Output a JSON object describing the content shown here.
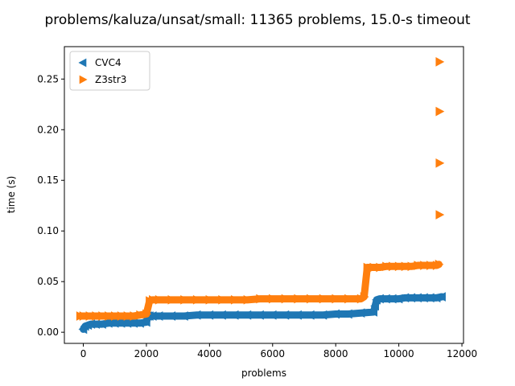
{
  "chart_data": {
    "type": "scatter",
    "title": "problems/kaluza/unsat/small: 11365 problems, 15.0-s timeout",
    "xlabel": "problems",
    "ylabel": "time (s)",
    "xlim": [
      -600,
      12050
    ],
    "ylim": [
      -0.011,
      0.282
    ],
    "xticks": [
      0,
      2000,
      4000,
      6000,
      8000,
      10000,
      12000
    ],
    "xtick_labels": [
      "0",
      "2000",
      "4000",
      "6000",
      "8000",
      "10000",
      "12000"
    ],
    "yticks": [
      0.0,
      0.05,
      0.1,
      0.15,
      0.2,
      0.25
    ],
    "ytick_labels": [
      "0.00",
      "0.05",
      "0.10",
      "0.15",
      "0.20",
      "0.25"
    ],
    "grid": false,
    "legend_position": "top-left",
    "series": [
      {
        "name": "CVC4",
        "marker": "triangle-left",
        "color": "#1f77b4",
        "x": [
          0,
          60,
          150,
          250,
          400,
          600,
          800,
          1000,
          1200,
          1400,
          1600,
          1800,
          2000,
          2050,
          2100,
          2200,
          2400,
          2800,
          3200,
          3600,
          4000,
          4400,
          4800,
          5200,
          5600,
          6000,
          6400,
          6800,
          7200,
          7600,
          8000,
          8400,
          8800,
          9200,
          9250,
          9300,
          9400,
          9600,
          9800,
          10000,
          10200,
          10400,
          10600,
          10800,
          11000,
          11200,
          11365
        ],
        "y": [
          0.003,
          0.006,
          0.007,
          0.008,
          0.008,
          0.008,
          0.009,
          0.009,
          0.009,
          0.009,
          0.009,
          0.009,
          0.01,
          0.016,
          0.016,
          0.016,
          0.016,
          0.016,
          0.016,
          0.017,
          0.017,
          0.017,
          0.017,
          0.017,
          0.017,
          0.017,
          0.017,
          0.017,
          0.017,
          0.017,
          0.018,
          0.018,
          0.019,
          0.02,
          0.026,
          0.032,
          0.033,
          0.033,
          0.033,
          0.033,
          0.034,
          0.034,
          0.034,
          0.034,
          0.034,
          0.034,
          0.035
        ]
      },
      {
        "name": "Z3str3",
        "marker": "triangle-right",
        "color": "#ff7f0e",
        "x": [
          -100,
          0,
          200,
          400,
          600,
          800,
          1000,
          1200,
          1400,
          1600,
          1800,
          2000,
          2100,
          2200,
          2400,
          2800,
          3200,
          3600,
          4000,
          4400,
          4800,
          5200,
          5600,
          6000,
          6400,
          6800,
          7200,
          7600,
          8000,
          8400,
          8800,
          8900,
          9000,
          9200,
          9400,
          9600,
          9800,
          10000,
          10200,
          10400,
          10600,
          10800,
          11000,
          11200,
          11270,
          11290,
          11290,
          11290,
          11290
        ],
        "y": [
          0.016,
          0.016,
          0.016,
          0.016,
          0.016,
          0.016,
          0.016,
          0.016,
          0.016,
          0.016,
          0.017,
          0.018,
          0.031,
          0.032,
          0.032,
          0.032,
          0.032,
          0.032,
          0.032,
          0.032,
          0.032,
          0.032,
          0.033,
          0.033,
          0.033,
          0.033,
          0.033,
          0.033,
          0.033,
          0.033,
          0.033,
          0.035,
          0.064,
          0.064,
          0.064,
          0.065,
          0.065,
          0.065,
          0.065,
          0.065,
          0.066,
          0.066,
          0.066,
          0.066,
          0.067,
          0.116,
          0.167,
          0.218,
          0.267
        ]
      }
    ]
  }
}
